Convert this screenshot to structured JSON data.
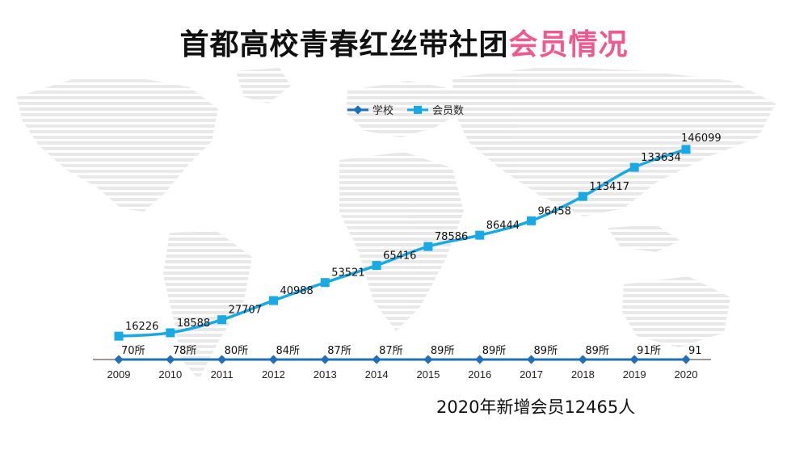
{
  "title": {
    "main": "首都高校青春红丝带社团",
    "accent": "会员情况"
  },
  "colors": {
    "accent": "#f0598f",
    "series_school": "#1f6fba",
    "series_members": "#19a9e6",
    "axis": "#333333",
    "map": "#e9e9e9"
  },
  "footnote": "2020年新增会员12465人",
  "chart_data": {
    "type": "line",
    "categories": [
      "2009",
      "2010",
      "2011",
      "2012",
      "2013",
      "2014",
      "2015",
      "2016",
      "2017",
      "2018",
      "2019",
      "2020"
    ],
    "legend_position": "top-center",
    "grid": false,
    "ylim": [
      0,
      150000
    ],
    "series": [
      {
        "name": "学校",
        "values": [
          70,
          78,
          80,
          84,
          87,
          87,
          89,
          89,
          89,
          89,
          91,
          91
        ],
        "labels": [
          "70所",
          "78所",
          "80所",
          "84所",
          "87所",
          "87所",
          "89所",
          "89所",
          "89所",
          "89所",
          "91所",
          "91"
        ],
        "marker": "diamond",
        "color": "#1f6fba"
      },
      {
        "name": "会员数",
        "values": [
          16226,
          18588,
          27707,
          40988,
          53521,
          65416,
          78586,
          86444,
          96458,
          113417,
          133634,
          146099
        ],
        "labels": [
          "16226",
          "18588",
          "27707",
          "40988",
          "53521",
          "65416",
          "78586",
          "86444",
          "96458",
          "113417",
          "133634",
          "146099"
        ],
        "marker": "square",
        "color": "#19a9e6"
      }
    ]
  }
}
